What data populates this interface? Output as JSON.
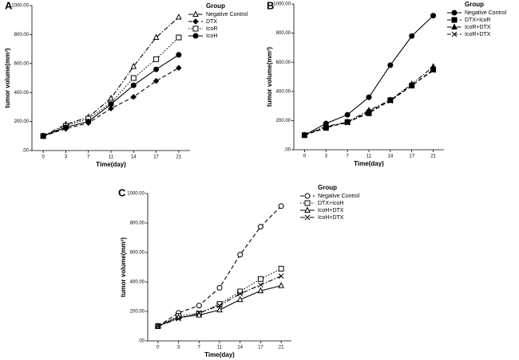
{
  "chart_data": [
    {
      "type": "line",
      "panel": "A",
      "x_label": "Time(day)",
      "y_label": "tumor volume(mm³)",
      "legend_title": "Group",
      "categories": [
        "0",
        "3",
        "7",
        "11",
        "14",
        "17",
        "21"
      ],
      "ylim": [
        0,
        1000
      ],
      "yticks": [
        {
          "value": 0,
          "label": ".00"
        },
        {
          "value": 200,
          "label": "200.00"
        },
        {
          "value": 400,
          "label": "400.00"
        },
        {
          "value": 600,
          "label": "600.00"
        },
        {
          "value": 800,
          "label": "800.00"
        },
        {
          "value": 1000,
          "label": "1000.00"
        }
      ],
      "series": [
        {
          "name": "Negative Control",
          "color": "#000000",
          "marker": "triangle-open",
          "line_style": "dashdot",
          "values": [
            100,
            180,
            230,
            360,
            580,
            780,
            920
          ]
        },
        {
          "name": "DTX",
          "color": "#000000",
          "marker": "diamond",
          "line_style": "dashed",
          "values": [
            100,
            150,
            190,
            290,
            370,
            480,
            570
          ]
        },
        {
          "name": "IcoR",
          "color": "#000000",
          "marker": "square-open",
          "line_style": "dotted",
          "values": [
            100,
            170,
            220,
            330,
            500,
            630,
            780
          ]
        },
        {
          "name": "IcoH",
          "color": "#000000",
          "marker": "circle",
          "line_style": "solid",
          "values": [
            100,
            160,
            200,
            320,
            450,
            560,
            660
          ]
        }
      ]
    },
    {
      "type": "line",
      "panel": "B",
      "x_label": "Time(day)",
      "y_label": "tumor volume(mm³)",
      "legend_title": "Group",
      "categories": [
        "0",
        "3",
        "7",
        "11",
        "14",
        "17",
        "21"
      ],
      "ylim": [
        0,
        1000
      ],
      "yticks": [
        {
          "value": 0,
          "label": ".00"
        },
        {
          "value": 200,
          "label": "200.00"
        },
        {
          "value": 400,
          "label": "400.00"
        },
        {
          "value": 600,
          "label": "600.00"
        },
        {
          "value": 800,
          "label": "800.00"
        },
        {
          "value": 1000,
          "label": "1000.00"
        }
      ],
      "series": [
        {
          "name": "Negative Control",
          "color": "#000000",
          "marker": "circle",
          "line_style": "solid",
          "values": [
            100,
            180,
            240,
            360,
            580,
            780,
            920
          ]
        },
        {
          "name": "DTX+IcoR",
          "color": "#000000",
          "marker": "square",
          "line_style": "dashed",
          "values": [
            100,
            150,
            190,
            250,
            340,
            440,
            550
          ]
        },
        {
          "name": "IcoR+DTX",
          "color": "#000000",
          "marker": "triangle",
          "line_style": "dashdot",
          "values": [
            100,
            160,
            190,
            270,
            340,
            450,
            570
          ]
        },
        {
          "name": "IcoR+DTX",
          "color": "#000000",
          "marker": "x",
          "line_style": "dashed",
          "values": [
            100,
            155,
            185,
            260,
            335,
            440,
            545
          ]
        }
      ]
    },
    {
      "type": "line",
      "panel": "C",
      "x_label": "Time(day)",
      "y_label": "tumor volume(mm³)",
      "legend_title": "Group",
      "categories": [
        "0",
        "3",
        "7",
        "11",
        "14",
        "17",
        "21"
      ],
      "ylim": [
        0,
        1000
      ],
      "yticks": [
        {
          "value": 0,
          "label": ".00"
        },
        {
          "value": 200,
          "label": "200.00"
        },
        {
          "value": 400,
          "label": "400.00"
        },
        {
          "value": 600,
          "label": "600.00"
        },
        {
          "value": 800,
          "label": "800.00"
        },
        {
          "value": 1000,
          "label": "1000.00"
        }
      ],
      "series": [
        {
          "name": "Negative Control",
          "color": "#000000",
          "marker": "circle-open",
          "line_style": "dashed",
          "values": [
            100,
            190,
            240,
            360,
            585,
            775,
            915
          ]
        },
        {
          "name": "DTX+IcoH",
          "color": "#000000",
          "marker": "square-open",
          "line_style": "dotted",
          "values": [
            100,
            170,
            185,
            250,
            335,
            420,
            490
          ]
        },
        {
          "name": "IcoH+DTX",
          "color": "#000000",
          "marker": "triangle-open",
          "line_style": "solid",
          "values": [
            100,
            160,
            175,
            210,
            280,
            340,
            375
          ]
        },
        {
          "name": "IcoH+DTX",
          "color": "#000000",
          "marker": "x",
          "line_style": "dashdot",
          "values": [
            100,
            150,
            190,
            240,
            320,
            380,
            440
          ]
        }
      ]
    }
  ]
}
